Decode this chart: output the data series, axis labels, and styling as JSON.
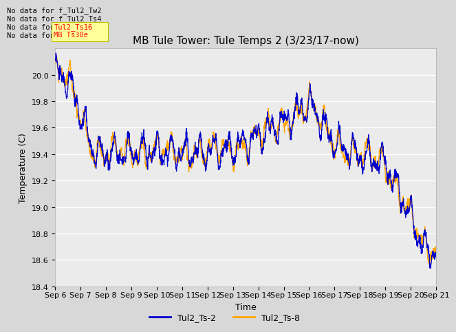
{
  "title": "MB Tule Tower: Tule Temps 2 (3/23/17-now)",
  "xlabel": "Time",
  "ylabel": "Temperature (C)",
  "ylim": [
    18.4,
    20.2
  ],
  "xlim": [
    0,
    15
  ],
  "x_tick_labels": [
    "Sep 6",
    "Sep 7",
    "Sep 8",
    "Sep 9",
    "Sep 10",
    "Sep 11",
    "Sep 12",
    "Sep 13",
    "Sep 14",
    "Sep 15",
    "Sep 16",
    "Sep 17",
    "Sep 18",
    "Sep 19",
    "Sep 20",
    "Sep 21"
  ],
  "line1_color": "#0000cc",
  "line2_color": "#ffa500",
  "legend_labels": [
    "Tul2_Ts-2",
    "Tul2_Ts-8"
  ],
  "no_data_labels": [
    "No data for f_Tul2_Tw2",
    "No data for f_Tul2_Ts4",
    "No data for f_Tul2_Ts16",
    "No data for f_Tul2_Ts30"
  ],
  "background_color": "#d8d8d8",
  "plot_background": "#ebebeb",
  "grid_color": "white",
  "title_fontsize": 11,
  "axis_fontsize": 9,
  "tick_fontsize": 8
}
